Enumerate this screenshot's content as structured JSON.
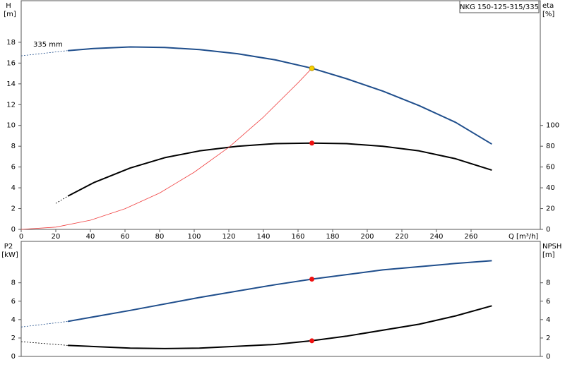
{
  "chart_data": [
    {
      "type": "line",
      "title": "NKG 150-125-315/335",
      "ylabel": "H",
      "yunit": "[m]",
      "y2label": "eta",
      "y2unit": "[%]",
      "xlabel": "Q [m³/h]",
      "annotations": [
        {
          "text": "335 mm"
        }
      ],
      "xlim": [
        0,
        300
      ],
      "xticks": [
        0,
        20,
        40,
        60,
        80,
        100,
        120,
        140,
        160,
        180,
        200,
        220,
        240,
        260
      ],
      "ylim": [
        0,
        22
      ],
      "yticks": [
        0,
        2,
        4,
        6,
        8,
        10,
        12,
        14,
        16,
        18
      ],
      "y2lim": [
        0,
        220
      ],
      "y2ticks": [
        0,
        20,
        40,
        60,
        80,
        100
      ],
      "series": [
        {
          "color": "#1f4e8c",
          "style": "dashed",
          "x": [
            0,
            27
          ],
          "values": [
            16.7,
            17.2
          ]
        },
        {
          "color": "#1f4e8c",
          "style": "solid",
          "x": [
            27,
            42,
            63,
            83,
            103,
            125,
            147,
            168,
            188,
            209,
            230,
            251,
            272
          ],
          "values": [
            17.2,
            17.4,
            17.55,
            17.5,
            17.3,
            16.9,
            16.3,
            15.5,
            14.5,
            13.3,
            11.9,
            10.3,
            8.2
          ]
        },
        {
          "color": "#000000",
          "style": "dashed",
          "axis": "y2",
          "x": [
            20,
            27
          ],
          "values": [
            25,
            32
          ]
        },
        {
          "color": "#000000",
          "style": "solid",
          "axis": "y2",
          "x": [
            27,
            42,
            63,
            83,
            103,
            125,
            147,
            168,
            188,
            209,
            230,
            251,
            272
          ],
          "values": [
            32,
            45,
            59,
            69,
            75.5,
            80,
            82.5,
            83,
            82.5,
            80,
            75.5,
            68,
            57
          ]
        },
        {
          "color": "#f04040",
          "style": "thin",
          "x": [
            0,
            20,
            40,
            60,
            80,
            100,
            120,
            140,
            160,
            168
          ],
          "values": [
            0,
            0.22,
            0.88,
            1.98,
            3.5,
            5.5,
            7.9,
            10.8,
            14.1,
            15.5
          ]
        }
      ],
      "points": [
        {
          "x": 168,
          "y": 15.5,
          "color": "#f5d000"
        },
        {
          "x": 168,
          "y": 83,
          "color": "#ee1111",
          "axis": "y2"
        }
      ]
    },
    {
      "type": "line",
      "ylabel": "P2",
      "yunit": "[kW]",
      "y2label": "NPSH",
      "y2unit": "[m]",
      "xlim": [
        0,
        300
      ],
      "ylim": [
        0,
        12.5
      ],
      "yticks": [
        0,
        2,
        4,
        6,
        8
      ],
      "y2lim": [
        0,
        12.5
      ],
      "y2ticks": [
        0,
        2,
        4,
        6,
        8
      ],
      "series": [
        {
          "color": "#1f4e8c",
          "style": "dashed",
          "x": [
            0,
            27
          ],
          "values": [
            3.2,
            3.8
          ]
        },
        {
          "color": "#1f4e8c",
          "style": "solid",
          "x": [
            27,
            63,
            103,
            147,
            168,
            209,
            251,
            272
          ],
          "values": [
            3.8,
            5.0,
            6.4,
            7.8,
            8.4,
            9.4,
            10.1,
            10.4
          ]
        },
        {
          "color": "#000000",
          "style": "dashed",
          "axis": "y2",
          "x": [
            0,
            27
          ],
          "values": [
            1.6,
            1.2
          ]
        },
        {
          "color": "#000000",
          "style": "solid",
          "axis": "y2",
          "x": [
            27,
            63,
            83,
            103,
            147,
            168,
            188,
            230,
            251,
            272
          ],
          "values": [
            1.2,
            0.9,
            0.85,
            0.9,
            1.3,
            1.7,
            2.2,
            3.5,
            4.4,
            5.5
          ]
        }
      ],
      "points": [
        {
          "x": 168,
          "y": 8.4,
          "color": "#ee1111"
        },
        {
          "x": 168,
          "y": 1.7,
          "color": "#ee1111",
          "axis": "y2"
        }
      ]
    }
  ]
}
